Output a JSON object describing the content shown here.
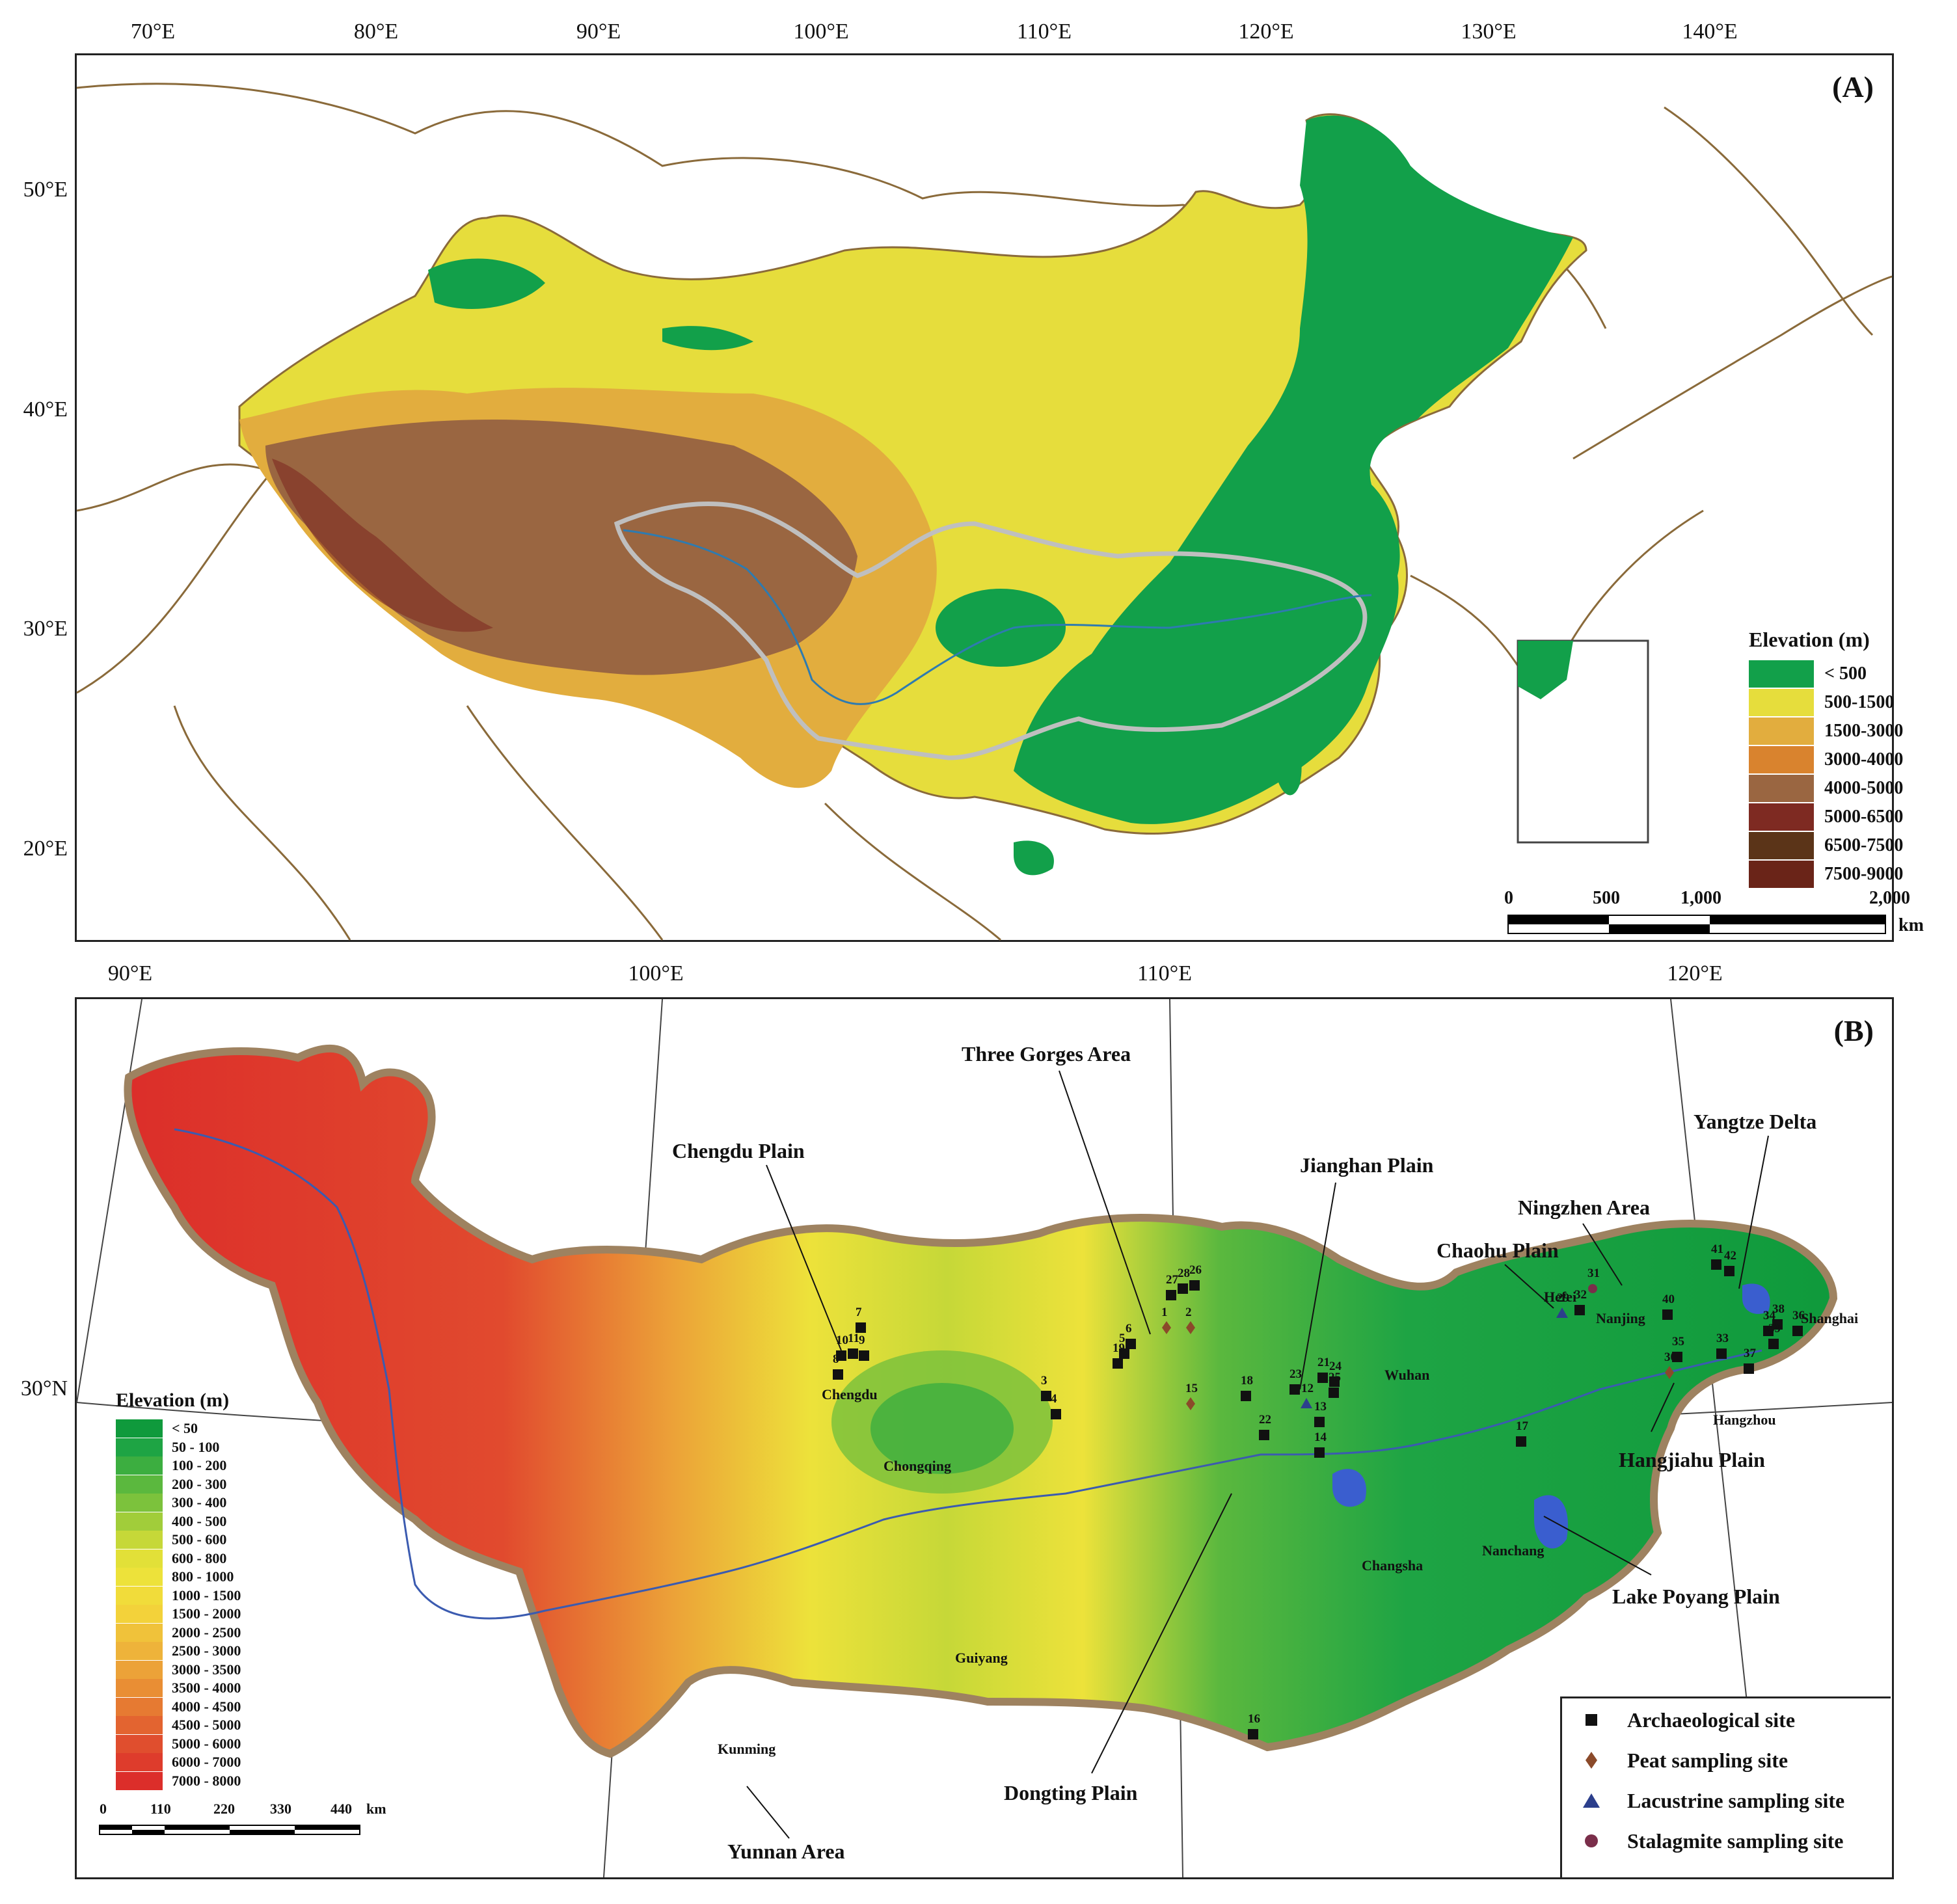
{
  "panel_a": {
    "label": "(A)",
    "x_ticks": [
      "70°E",
      "80°E",
      "90°E",
      "100°E",
      "110°E",
      "120°E",
      "130°E",
      "140°E"
    ],
    "y_ticks": [
      "50°E",
      "40°E",
      "30°E",
      "20°E"
    ],
    "legend": {
      "title": "Elevation (m)",
      "items": [
        {
          "label": "< 500",
          "color": "#12a04a"
        },
        {
          "label": "500-1500",
          "color": "#e6dd3c"
        },
        {
          "label": "1500-3000",
          "color": "#e2ad3e"
        },
        {
          "label": "3000-4000",
          "color": "#d9832e"
        },
        {
          "label": "4000-5000",
          "color": "#9a6641"
        },
        {
          "label": "5000-6500",
          "color": "#7e2a22"
        },
        {
          "label": "6500-7500",
          "color": "#5b3418"
        },
        {
          "label": "7500-9000",
          "color": "#6a2418"
        }
      ]
    },
    "scale": {
      "labels": [
        "0",
        "500",
        "1,000",
        "2,000"
      ],
      "unit": "km"
    }
  },
  "panel_b": {
    "label": "(B)",
    "x_ticks": [
      "90°E",
      "100°E",
      "110°E",
      "120°E"
    ],
    "y_ticks": [
      "30°N"
    ],
    "legend": {
      "title": "Elevation (m)",
      "items": [
        {
          "label": "< 50",
          "color": "#0f9a3c"
        },
        {
          "label": "50 - 100",
          "color": "#1ea444"
        },
        {
          "label": "100 - 200",
          "color": "#3cae40"
        },
        {
          "label": "200 - 300",
          "color": "#5bb83e"
        },
        {
          "label": "300 - 400",
          "color": "#7cc23c"
        },
        {
          "label": "400 - 500",
          "color": "#a1cd3a"
        },
        {
          "label": "500 - 600",
          "color": "#c6d838"
        },
        {
          "label": "600 - 800",
          "color": "#e2e038"
        },
        {
          "label": "800 - 1000",
          "color": "#ede23a"
        },
        {
          "label": "1000 - 1500",
          "color": "#f1dc3a"
        },
        {
          "label": "1500 - 2000",
          "color": "#f3d23a"
        },
        {
          "label": "2000 - 2500",
          "color": "#f0c23a"
        },
        {
          "label": "2500 - 3000",
          "color": "#eeb33a"
        },
        {
          "label": "3000 - 3500",
          "color": "#eca238"
        },
        {
          "label": "3500 - 4000",
          "color": "#e98e34"
        },
        {
          "label": "4000 - 4500",
          "color": "#e67a32"
        },
        {
          "label": "4500 - 5000",
          "color": "#e36430"
        },
        {
          "label": "5000 - 6000",
          "color": "#e04e2e"
        },
        {
          "label": "6000 - 7000",
          "color": "#de3c2c"
        },
        {
          "label": "7000 - 8000",
          "color": "#dc2e2a"
        }
      ]
    },
    "scale": {
      "labels": [
        "0",
        "110",
        "220",
        "330",
        "440"
      ],
      "unit": "km"
    },
    "regions": [
      "Three Gorges Area",
      "Chengdu Plain",
      "Jianghan Plain",
      "Ningzhen Area",
      "Yangtze Delta",
      "Chaohu Plain",
      "Hangjiahu Plain",
      "Lake Poyang Plain",
      "Dongting Plain",
      "Yunnan Area"
    ],
    "cities": [
      "Chengdu",
      "Chongqing",
      "Guiyang",
      "Kunming",
      "Wuhan",
      "Changsha",
      "Nanchang",
      "Hefei",
      "Nanjing",
      "Shanghai",
      "Hangzhou"
    ],
    "site_numbers": [
      "1",
      "2",
      "3",
      "4",
      "5",
      "6",
      "7",
      "8",
      "9",
      "10",
      "11",
      "12",
      "13",
      "14",
      "15",
      "16",
      "17",
      "18",
      "19",
      "21",
      "22",
      "23",
      "24",
      "25",
      "26",
      "27",
      "28",
      "29",
      "30",
      "31",
      "32",
      "33",
      "34",
      "35",
      "36",
      "37",
      "38",
      "39",
      "40",
      "41",
      "42"
    ],
    "site_legend": [
      {
        "label": "Archaeological site",
        "symbol": "square",
        "color": "#111111"
      },
      {
        "label": "Peat sampling site",
        "symbol": "diamond",
        "color": "#8b4a2a"
      },
      {
        "label": "Lacustrine sampling site",
        "symbol": "triangle",
        "color": "#2c3f8c"
      },
      {
        "label": "Stalagmite sampling site",
        "symbol": "circle",
        "color": "#7a2e4a"
      }
    ]
  }
}
